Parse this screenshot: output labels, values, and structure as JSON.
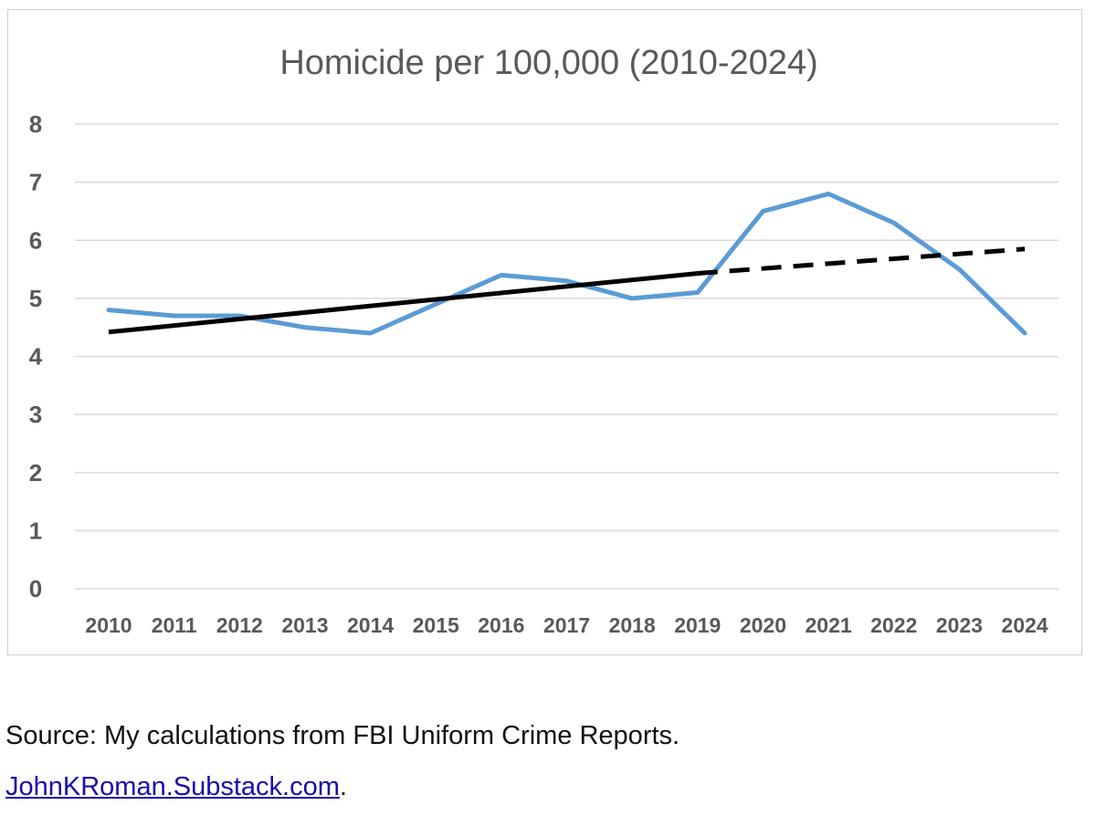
{
  "chart_data": {
    "type": "line",
    "title": "Homicide per 100,000 (2010-2024)",
    "xlabel": "",
    "ylabel": "",
    "x": [
      "2010",
      "2011",
      "2012",
      "2013",
      "2014",
      "2015",
      "2016",
      "2017",
      "2018",
      "2019",
      "2020",
      "2021",
      "2022",
      "2023",
      "2024"
    ],
    "ylim": [
      0,
      8
    ],
    "yticks": [
      "0",
      "1",
      "2",
      "3",
      "4",
      "5",
      "6",
      "7",
      "8"
    ],
    "grid": true,
    "series": [
      {
        "name": "Homicide rate",
        "color": "#5B9BD5",
        "values": [
          4.8,
          4.7,
          4.7,
          4.5,
          4.4,
          4.9,
          5.4,
          5.3,
          5.0,
          5.1,
          6.5,
          6.8,
          6.3,
          5.5,
          4.4
        ]
      }
    ],
    "trend": {
      "name": "Trend",
      "color": "#000000",
      "solid": {
        "x_start": 2010,
        "y_start": 4.42,
        "x_end": 2019,
        "y_end": 5.43
      },
      "dashed": {
        "x_start": 2019,
        "y_start": 5.43,
        "x_end": 2024,
        "y_end": 5.85
      }
    }
  },
  "footer": {
    "source": "Source: My calculations from FBI Uniform Crime Reports.",
    "link_text": "JohnKRoman.Substack.com",
    "link_suffix": "."
  }
}
